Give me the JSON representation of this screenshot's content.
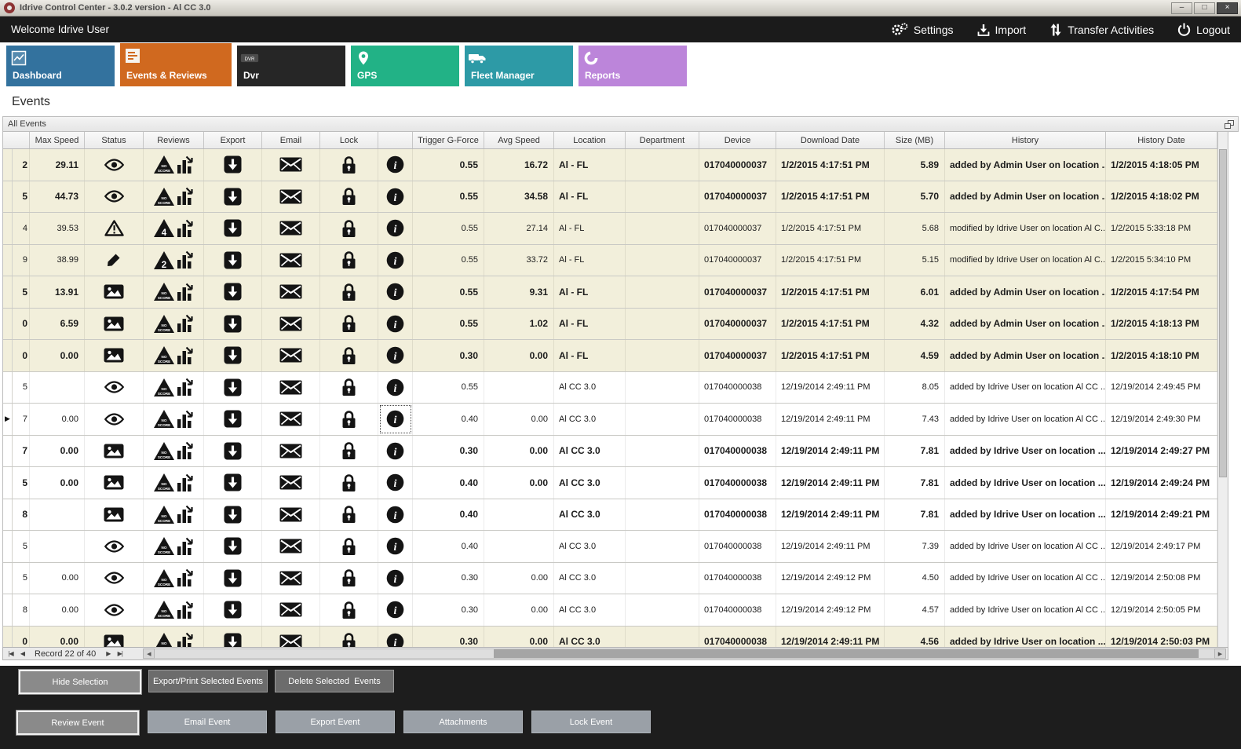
{
  "window": {
    "title": "Idrive Control Center - 3.0.2 version - Al CC 3.0"
  },
  "topbar": {
    "welcome": "Welcome Idrive User",
    "actions": [
      {
        "label": "Settings"
      },
      {
        "label": "Import"
      },
      {
        "label": "Transfer Activities"
      },
      {
        "label": "Logout"
      }
    ]
  },
  "tabs": [
    {
      "label": "Dashboard",
      "color": "#33729e",
      "active": false
    },
    {
      "label": "Events & Reviews",
      "color": "#d0691f",
      "active": true
    },
    {
      "label": "Dvr",
      "color": "#262626",
      "active": false
    },
    {
      "label": "GPS",
      "color": "#22b286",
      "active": false
    },
    {
      "label": "Fleet Manager",
      "color": "#2d9aa6",
      "active": false
    },
    {
      "label": "Reports",
      "color": "#bc85da",
      "active": false
    }
  ],
  "page_title": "Events",
  "panel": {
    "title": "All Events"
  },
  "icons": {
    "minimize": "–",
    "maximize": "□",
    "close": "×",
    "first_record": "|◀",
    "prev_record": "◀",
    "next_record": "▶",
    "last_record": "▶|",
    "scroll_left": "◀",
    "scroll_right": "▶",
    "current_row_marker": "▶",
    "noscore_line1": "NO",
    "noscore_line2": "SCORE",
    "dvr_label": "DVR"
  },
  "grid": {
    "columns": [
      "Max Speed",
      "Status",
      "Reviews",
      "Export",
      "Email",
      "Lock",
      "",
      "Trigger G-Force",
      "Avg Speed",
      "Location",
      "Department",
      "Device",
      "Download Date",
      "Size (MB)",
      "History",
      "History Date"
    ],
    "rows": [
      {
        "id": "2",
        "marker": false,
        "status": "eye",
        "review": "noscore",
        "max_speed": "29.11",
        "trigger": "0.55",
        "avg": "16.72",
        "location": "Al - FL",
        "department": "",
        "device": "017040000037",
        "downloaded": "1/2/2015 4:17:51 PM",
        "size": "5.89",
        "history": "added by Admin User on location ...",
        "history_date": "1/2/2015 4:18:05 PM",
        "bold": true,
        "tinted": true,
        "selected_info": false
      },
      {
        "id": "5",
        "marker": false,
        "status": "eye",
        "review": "noscore",
        "max_speed": "44.73",
        "trigger": "0.55",
        "avg": "34.58",
        "location": "Al - FL",
        "department": "",
        "device": "017040000037",
        "downloaded": "1/2/2015 4:17:51 PM",
        "size": "5.70",
        "history": "added by Admin User on location ...",
        "history_date": "1/2/2015 4:18:02 PM",
        "bold": true,
        "tinted": true,
        "selected_info": false
      },
      {
        "id": "4",
        "marker": false,
        "status": "warning",
        "review": "4",
        "max_speed": "39.53",
        "trigger": "0.55",
        "avg": "27.14",
        "location": "Al - FL",
        "department": "",
        "device": "017040000037",
        "downloaded": "1/2/2015 4:17:51 PM",
        "size": "5.68",
        "history": "modified by Idrive User on location Al C...",
        "history_date": "1/2/2015 5:33:18 PM",
        "bold": false,
        "tinted": true,
        "selected_info": false
      },
      {
        "id": "9",
        "marker": false,
        "status": "pencil",
        "review": "2",
        "max_speed": "38.99",
        "trigger": "0.55",
        "avg": "33.72",
        "location": "Al - FL",
        "department": "",
        "device": "017040000037",
        "downloaded": "1/2/2015 4:17:51 PM",
        "size": "5.15",
        "history": "modified by Idrive User on location Al C...",
        "history_date": "1/2/2015 5:34:10 PM",
        "bold": false,
        "tinted": true,
        "selected_info": false
      },
      {
        "id": "5",
        "marker": false,
        "status": "image",
        "review": "noscore",
        "max_speed": "13.91",
        "trigger": "0.55",
        "avg": "9.31",
        "location": "Al - FL",
        "department": "",
        "device": "017040000037",
        "downloaded": "1/2/2015 4:17:51 PM",
        "size": "6.01",
        "history": "added by Admin User on location ...",
        "history_date": "1/2/2015 4:17:54 PM",
        "bold": true,
        "tinted": true,
        "selected_info": false
      },
      {
        "id": "0",
        "marker": false,
        "status": "image",
        "review": "noscore",
        "max_speed": "6.59",
        "trigger": "0.55",
        "avg": "1.02",
        "location": "Al - FL",
        "department": "",
        "device": "017040000037",
        "downloaded": "1/2/2015 4:17:51 PM",
        "size": "4.32",
        "history": "added by Admin User on location ...",
        "history_date": "1/2/2015 4:18:13 PM",
        "bold": true,
        "tinted": true,
        "selected_info": false
      },
      {
        "id": "0",
        "marker": false,
        "status": "image",
        "review": "noscore",
        "max_speed": "0.00",
        "trigger": "0.30",
        "avg": "0.00",
        "location": "Al - FL",
        "department": "",
        "device": "017040000037",
        "downloaded": "1/2/2015 4:17:51 PM",
        "size": "4.59",
        "history": "added by Admin User on location ...",
        "history_date": "1/2/2015 4:18:10 PM",
        "bold": true,
        "tinted": true,
        "selected_info": false
      },
      {
        "id": "5",
        "marker": false,
        "status": "eye",
        "review": "noscore",
        "max_speed": "",
        "trigger": "0.55",
        "avg": "",
        "location": "Al CC 3.0",
        "department": "",
        "device": "017040000038",
        "downloaded": "12/19/2014 2:49:11 PM",
        "size": "8.05",
        "history": "added by Idrive User on location Al CC ...",
        "history_date": "12/19/2014 2:49:45 PM",
        "bold": false,
        "tinted": false,
        "selected_info": false
      },
      {
        "id": "7",
        "marker": true,
        "status": "eye",
        "review": "noscore",
        "max_speed": "0.00",
        "trigger": "0.40",
        "avg": "0.00",
        "location": "Al CC 3.0",
        "department": "",
        "device": "017040000038",
        "downloaded": "12/19/2014 2:49:11 PM",
        "size": "7.43",
        "history": "added by Idrive User on location Al CC ...",
        "history_date": "12/19/2014 2:49:30 PM",
        "bold": false,
        "tinted": false,
        "selected_info": true
      },
      {
        "id": "7",
        "marker": false,
        "status": "image",
        "review": "noscore",
        "max_speed": "0.00",
        "trigger": "0.30",
        "avg": "0.00",
        "location": "Al CC 3.0",
        "department": "",
        "device": "017040000038",
        "downloaded": "12/19/2014 2:49:11 PM",
        "size": "7.81",
        "history": "added by Idrive User on location ...",
        "history_date": "12/19/2014 2:49:27 PM",
        "bold": true,
        "tinted": false,
        "selected_info": false
      },
      {
        "id": "5",
        "marker": false,
        "status": "image",
        "review": "noscore",
        "max_speed": "0.00",
        "trigger": "0.40",
        "avg": "0.00",
        "location": "Al CC 3.0",
        "department": "",
        "device": "017040000038",
        "downloaded": "12/19/2014 2:49:11 PM",
        "size": "7.81",
        "history": "added by Idrive User on location ...",
        "history_date": "12/19/2014 2:49:24 PM",
        "bold": true,
        "tinted": false,
        "selected_info": false
      },
      {
        "id": "8",
        "marker": false,
        "status": "image",
        "review": "noscore",
        "max_speed": "",
        "trigger": "0.40",
        "avg": "",
        "location": "Al CC 3.0",
        "department": "",
        "device": "017040000038",
        "downloaded": "12/19/2014 2:49:11 PM",
        "size": "7.81",
        "history": "added by Idrive User on location ...",
        "history_date": "12/19/2014 2:49:21 PM",
        "bold": true,
        "tinted": false,
        "selected_info": false
      },
      {
        "id": "5",
        "marker": false,
        "status": "eye",
        "review": "noscore",
        "max_speed": "",
        "trigger": "0.40",
        "avg": "",
        "location": "Al CC 3.0",
        "department": "",
        "device": "017040000038",
        "downloaded": "12/19/2014 2:49:11 PM",
        "size": "7.39",
        "history": "added by Idrive User on location Al CC ...",
        "history_date": "12/19/2014 2:49:17 PM",
        "bold": false,
        "tinted": false,
        "selected_info": false
      },
      {
        "id": "5",
        "marker": false,
        "status": "eye",
        "review": "noscore",
        "max_speed": "0.00",
        "trigger": "0.30",
        "avg": "0.00",
        "location": "Al CC 3.0",
        "department": "",
        "device": "017040000038",
        "downloaded": "12/19/2014 2:49:12 PM",
        "size": "4.50",
        "history": "added by Idrive User on location Al CC ...",
        "history_date": "12/19/2014 2:50:08 PM",
        "bold": false,
        "tinted": false,
        "selected_info": false
      },
      {
        "id": "8",
        "marker": false,
        "status": "eye",
        "review": "noscore",
        "max_speed": "0.00",
        "trigger": "0.30",
        "avg": "0.00",
        "location": "Al CC 3.0",
        "department": "",
        "device": "017040000038",
        "downloaded": "12/19/2014 2:49:12 PM",
        "size": "4.57",
        "history": "added by Idrive User on location Al CC ...",
        "history_date": "12/19/2014 2:50:05 PM",
        "bold": false,
        "tinted": false,
        "selected_info": false
      },
      {
        "id": "0",
        "marker": false,
        "status": "image",
        "review": "noscore",
        "max_speed": "0.00",
        "trigger": "0.30",
        "avg": "0.00",
        "location": "Al CC 3.0",
        "department": "",
        "device": "017040000038",
        "downloaded": "12/19/2014 2:49:11 PM",
        "size": "4.56",
        "history": "added by Idrive User on location ...",
        "history_date": "12/19/2014 2:50:03 PM",
        "bold": true,
        "tinted": true,
        "selected_info": false
      }
    ]
  },
  "pager": {
    "record_label": "Record 22 of 40"
  },
  "footer": {
    "row1": [
      "Hide Selection",
      "Export/Print Selected Events",
      "Delete Selected  Events"
    ],
    "row2": [
      "Review Event",
      "Email Event",
      "Export Event",
      "Attachments",
      "Lock Event"
    ]
  },
  "colors": {
    "row_tint": "#f2efdb",
    "footer_bg": "#1d1d1d"
  }
}
